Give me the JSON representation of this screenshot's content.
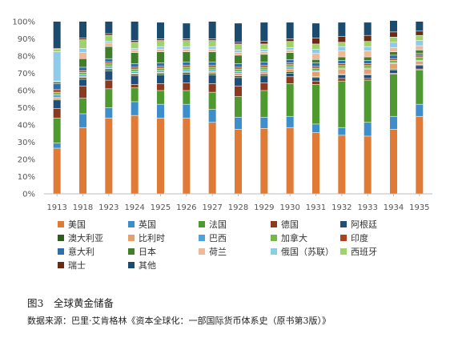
{
  "figure": {
    "caption": "图3　全球黄金储备",
    "source": "数据来源：巴里·艾肯格林《资本全球化：一部国际货币体系史（原书第3版）》"
  },
  "chart_data": {
    "type": "bar",
    "stacked": true,
    "percent": true,
    "title": "",
    "xlabel": "",
    "ylabel": "",
    "ylim": [
      0,
      100
    ],
    "yticks": [
      "0%",
      "10%",
      "20%",
      "30%",
      "40%",
      "50%",
      "60%",
      "70%",
      "80%",
      "90%",
      "100%"
    ],
    "grid": false,
    "legend": "bottom",
    "categories": [
      "1913",
      "1918",
      "1923",
      "1924",
      "1925",
      "1926",
      "1927",
      "1928",
      "1929",
      "1930",
      "1931",
      "1932",
      "1933",
      "1934",
      "1935"
    ],
    "series": [
      {
        "name": "美国",
        "color": "#E07A35",
        "values": [
          26.5,
          38.5,
          44,
          45.5,
          44,
          44,
          41.5,
          37.5,
          38,
          38.5,
          35.5,
          34,
          33.5,
          37.5,
          45
        ]
      },
      {
        "name": "英国",
        "color": "#3D8FCB",
        "values": [
          3,
          8,
          6,
          8,
          8,
          8,
          7.5,
          7,
          6.5,
          6.5,
          5,
          4.5,
          8,
          7.5,
          7
        ]
      },
      {
        "name": "法国",
        "color": "#4E9A2F",
        "values": [
          14.5,
          9,
          11,
          8,
          8,
          8,
          10,
          12,
          15.5,
          19,
          23,
          27,
          24.5,
          24.5,
          20
        ]
      },
      {
        "name": "德国",
        "color": "#8B3A1F",
        "values": [
          5.5,
          7,
          5,
          2,
          4,
          4.5,
          5,
          6,
          4.5,
          4,
          2,
          1.5,
          1,
          0.5,
          0.5
        ]
      },
      {
        "name": "阿根廷",
        "color": "#1F4E79",
        "values": [
          5,
          4,
          5.5,
          5,
          5,
          5,
          5,
          5,
          4,
          2,
          2,
          2,
          2,
          2,
          2
        ]
      },
      {
        "name": "澳大利亚",
        "color": "#2E5E1E",
        "values": [
          0.5,
          1,
          1,
          1,
          1,
          1,
          1,
          1,
          1,
          1,
          0.5,
          0.5,
          0.5,
          0.5,
          0.5
        ]
      },
      {
        "name": "比利时",
        "color": "#E6A06F",
        "values": [
          1,
          0.5,
          0.5,
          0.5,
          0.5,
          0.5,
          1,
          1.5,
          1.5,
          1.5,
          3,
          3,
          3,
          3,
          2
        ]
      },
      {
        "name": "巴西",
        "color": "#4FA3D8",
        "values": [
          1.5,
          1,
          1,
          1,
          1,
          1,
          1,
          1,
          1,
          1,
          0.5,
          0.5,
          0.5,
          0.5,
          0.5
        ]
      },
      {
        "name": "加拿大",
        "color": "#72B84A",
        "values": [
          1.5,
          1.5,
          1.5,
          1.5,
          1.5,
          1.5,
          1.5,
          1.5,
          1.5,
          1.5,
          1.5,
          1.5,
          1.5,
          1.5,
          2
        ]
      },
      {
        "name": "印度",
        "color": "#A9441D",
        "values": [
          1.5,
          1,
          1,
          1,
          1,
          1,
          1,
          1,
          1,
          1,
          1,
          1,
          1,
          1,
          1
        ]
      },
      {
        "name": "意大利",
        "color": "#2F6EA8",
        "values": [
          3.5,
          2,
          2,
          2,
          2,
          2,
          2,
          2,
          2,
          2,
          2,
          2,
          2,
          2,
          1
        ]
      },
      {
        "name": "日本",
        "color": "#3F7F2A",
        "values": [
          1,
          5,
          7,
          6.5,
          6.5,
          6,
          6,
          5,
          4.5,
          4,
          2,
          2,
          2,
          2,
          2
        ]
      },
      {
        "name": "荷兰",
        "color": "#EFB896",
        "values": [
          0.5,
          3.5,
          2,
          1.5,
          1.5,
          1.5,
          1.5,
          1.5,
          1.5,
          1.5,
          3.5,
          3.5,
          3.5,
          2.5,
          2.5
        ]
      },
      {
        "name": "俄国（苏联）",
        "color": "#8CCBEA",
        "values": [
          17,
          2.5,
          1,
          1,
          1.5,
          1.5,
          1.5,
          1.5,
          1.5,
          1.5,
          2.5,
          2.5,
          2.5,
          3,
          3
        ]
      },
      {
        "name": "西班牙",
        "color": "#9ED36A",
        "values": [
          1.5,
          5,
          3.5,
          3.5,
          3.5,
          3.5,
          3.5,
          3.5,
          3,
          3.5,
          3,
          2.5,
          3,
          3,
          3
        ]
      },
      {
        "name": "瑞士",
        "color": "#6A2A14",
        "values": [
          0.5,
          1,
          1,
          1,
          1,
          1,
          1,
          1,
          1.5,
          1.5,
          3.5,
          3.5,
          3.5,
          3,
          2.5
        ]
      },
      {
        "name": "其他",
        "color": "#1B4B6E",
        "values": [
          15.5,
          9.5,
          7,
          11,
          9.5,
          9,
          10,
          11,
          11,
          9.5,
          8.5,
          8,
          7.5,
          6.5,
          5.5
        ]
      }
    ]
  }
}
